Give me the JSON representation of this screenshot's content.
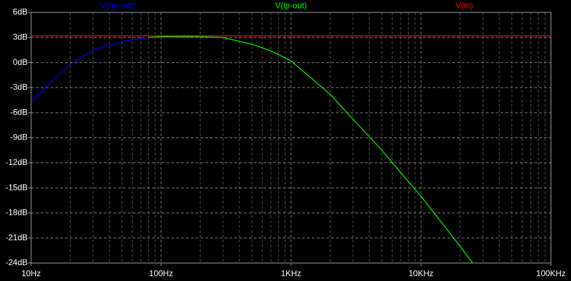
{
  "chart_data": {
    "type": "line",
    "log_x": true,
    "grid": true,
    "background": "#000000",
    "x": [
      10,
      15,
      20,
      30,
      50,
      70,
      80,
      100,
      200,
      300,
      500,
      700,
      1000,
      2000,
      3000,
      5000,
      7000,
      10000,
      15000,
      20000,
      25000,
      100000
    ],
    "series": [
      {
        "name": "V(hp-out)",
        "color": "#0000ff",
        "values": [
          -4.7,
          -2.0,
          -0.2,
          1.5,
          2.5,
          2.9,
          3.0,
          3.0,
          3.1,
          3.0,
          null,
          null,
          null,
          null,
          null,
          null,
          null,
          null,
          null,
          null,
          null,
          null
        ]
      },
      {
        "name": "V(lp-out)",
        "color": "#00ff00",
        "values": [
          null,
          null,
          null,
          null,
          null,
          null,
          3.0,
          3.1,
          3.1,
          3.0,
          2.2,
          1.4,
          0.2,
          -3.8,
          -6.8,
          -10.5,
          -13.2,
          -16.0,
          -19.5,
          -22.0,
          -24.0,
          null
        ]
      },
      {
        "name": "V(in)",
        "color": "#ff0000",
        "values": [
          3.2,
          3.2,
          3.2,
          3.2,
          3.2,
          3.2,
          3.2,
          3.2,
          3.2,
          3.2,
          3.2,
          3.2,
          3.2,
          3.2,
          3.2,
          3.2,
          3.2,
          3.2,
          3.2,
          3.2,
          3.2,
          3.2
        ]
      }
    ],
    "xlim": [
      10,
      100000
    ],
    "xticks": [
      {
        "value": 10,
        "label": "10Hz"
      },
      {
        "value": 100,
        "label": "100Hz"
      },
      {
        "value": 1000,
        "label": "1KHz"
      },
      {
        "value": 10000,
        "label": "10KHz"
      },
      {
        "value": 100000,
        "label": "100KHz"
      }
    ],
    "ylim": [
      -24,
      6
    ],
    "yticks": [
      {
        "value": 6,
        "label": "6dB"
      },
      {
        "value": 3,
        "label": "3dB"
      },
      {
        "value": 0,
        "label": "0dB"
      },
      {
        "value": -3,
        "label": "-3dB"
      },
      {
        "value": -6,
        "label": "-6dB"
      },
      {
        "value": -9,
        "label": "-9dB"
      },
      {
        "value": -12,
        "label": "-12dB"
      },
      {
        "value": -15,
        "label": "-15dB"
      },
      {
        "value": -18,
        "label": "-18dB"
      },
      {
        "value": -21,
        "label": "-21dB"
      },
      {
        "value": -24,
        "label": "-24dB"
      }
    ]
  }
}
